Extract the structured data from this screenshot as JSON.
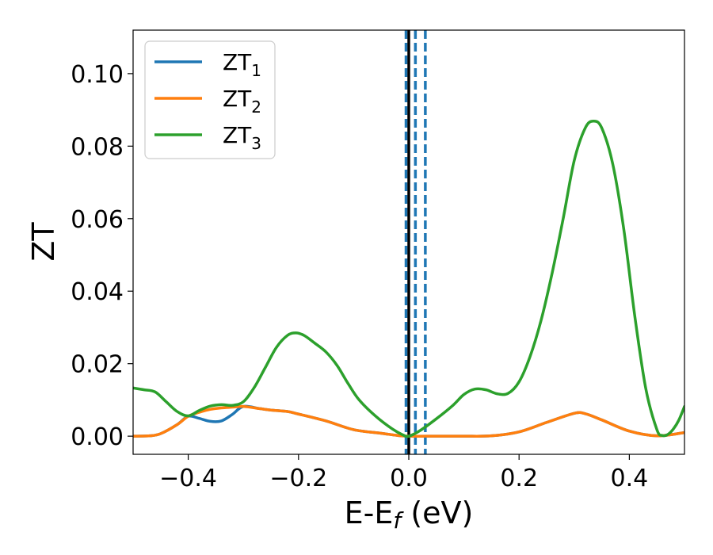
{
  "chart_data": {
    "type": "line",
    "xlabel": "E-E",
    "xlabel_sub": "f",
    "xlabel_unit": " (eV)",
    "ylabel": "ZT",
    "xlim": [
      -0.5,
      0.5
    ],
    "ylim": [
      -0.005,
      0.112
    ],
    "xticks": [
      -0.4,
      -0.2,
      0.0,
      0.2,
      0.4
    ],
    "xtick_labels": [
      "−0.4",
      "−0.2",
      "0.0",
      "0.2",
      "0.4"
    ],
    "yticks": [
      0.0,
      0.02,
      0.04,
      0.06,
      0.08,
      0.1
    ],
    "ytick_labels": [
      "0.00",
      "0.02",
      "0.04",
      "0.06",
      "0.08",
      "0.10"
    ],
    "grid": false,
    "legend": "top-left",
    "series": [
      {
        "name": "ZT",
        "sub": "1",
        "color": "#1f77b4",
        "points": [
          [
            -0.5,
            0.0
          ],
          [
            -0.47,
            0.0001
          ],
          [
            -0.45,
            0.0007
          ],
          [
            -0.42,
            0.0032
          ],
          [
            -0.4,
            0.0055
          ],
          [
            -0.38,
            0.0049
          ],
          [
            -0.36,
            0.0041
          ],
          [
            -0.34,
            0.0042
          ],
          [
            -0.32,
            0.006
          ],
          [
            -0.3,
            0.0082
          ],
          [
            -0.27,
            0.0076
          ],
          [
            -0.25,
            0.0072
          ],
          [
            -0.22,
            0.0068
          ],
          [
            -0.2,
            0.0061
          ],
          [
            -0.15,
            0.0042
          ],
          [
            -0.1,
            0.0018
          ],
          [
            -0.05,
            0.0008
          ],
          [
            -0.02,
            0.0002
          ],
          [
            0.0,
            0.0
          ],
          [
            0.05,
            0.0
          ],
          [
            0.1,
            0.0
          ],
          [
            0.15,
            0.0001
          ],
          [
            0.2,
            0.0012
          ],
          [
            0.25,
            0.0038
          ],
          [
            0.3,
            0.0063
          ],
          [
            0.32,
            0.0062
          ],
          [
            0.35,
            0.0045
          ],
          [
            0.4,
            0.0014
          ],
          [
            0.45,
            0.0001
          ],
          [
            0.5,
            0.001
          ]
        ]
      },
      {
        "name": "ZT",
        "sub": "2",
        "color": "#ff7f0e",
        "points": [
          [
            -0.5,
            0.0
          ],
          [
            -0.47,
            0.0001
          ],
          [
            -0.45,
            0.0007
          ],
          [
            -0.42,
            0.0032
          ],
          [
            -0.4,
            0.0055
          ],
          [
            -0.38,
            0.0066
          ],
          [
            -0.36,
            0.0074
          ],
          [
            -0.34,
            0.0078
          ],
          [
            -0.32,
            0.008
          ],
          [
            -0.3,
            0.0082
          ],
          [
            -0.27,
            0.0076
          ],
          [
            -0.25,
            0.0072
          ],
          [
            -0.22,
            0.0068
          ],
          [
            -0.2,
            0.0061
          ],
          [
            -0.15,
            0.0042
          ],
          [
            -0.1,
            0.0018
          ],
          [
            -0.05,
            0.0008
          ],
          [
            -0.02,
            0.0002
          ],
          [
            0.0,
            0.0
          ],
          [
            0.05,
            0.0
          ],
          [
            0.1,
            0.0
          ],
          [
            0.15,
            0.0001
          ],
          [
            0.2,
            0.0012
          ],
          [
            0.25,
            0.0038
          ],
          [
            0.3,
            0.0063
          ],
          [
            0.32,
            0.0062
          ],
          [
            0.35,
            0.0045
          ],
          [
            0.4,
            0.0014
          ],
          [
            0.45,
            0.0001
          ],
          [
            0.5,
            0.001
          ]
        ]
      },
      {
        "name": "ZT",
        "sub": "3",
        "color": "#2ca02c",
        "points": [
          [
            -0.5,
            0.0133
          ],
          [
            -0.48,
            0.0128
          ],
          [
            -0.46,
            0.0122
          ],
          [
            -0.44,
            0.0095
          ],
          [
            -0.42,
            0.0068
          ],
          [
            -0.4,
            0.0056
          ],
          [
            -0.38,
            0.0071
          ],
          [
            -0.36,
            0.0083
          ],
          [
            -0.34,
            0.0087
          ],
          [
            -0.32,
            0.0085
          ],
          [
            -0.3,
            0.0095
          ],
          [
            -0.28,
            0.0135
          ],
          [
            -0.26,
            0.019
          ],
          [
            -0.24,
            0.0245
          ],
          [
            -0.22,
            0.0278
          ],
          [
            -0.205,
            0.0285
          ],
          [
            -0.19,
            0.0278
          ],
          [
            -0.17,
            0.0256
          ],
          [
            -0.15,
            0.0232
          ],
          [
            -0.13,
            0.0195
          ],
          [
            -0.11,
            0.0145
          ],
          [
            -0.09,
            0.01
          ],
          [
            -0.06,
            0.0055
          ],
          [
            -0.03,
            0.002
          ],
          [
            -0.01,
            0.0003
          ],
          [
            0.0,
            0.0
          ],
          [
            0.02,
            0.0015
          ],
          [
            0.05,
            0.0048
          ],
          [
            0.08,
            0.0085
          ],
          [
            0.1,
            0.0115
          ],
          [
            0.12,
            0.013
          ],
          [
            0.14,
            0.0128
          ],
          [
            0.16,
            0.0117
          ],
          [
            0.18,
            0.0118
          ],
          [
            0.2,
            0.015
          ],
          [
            0.22,
            0.022
          ],
          [
            0.24,
            0.032
          ],
          [
            0.26,
            0.045
          ],
          [
            0.28,
            0.06
          ],
          [
            0.3,
            0.076
          ],
          [
            0.32,
            0.085
          ],
          [
            0.335,
            0.0869
          ],
          [
            0.35,
            0.085
          ],
          [
            0.37,
            0.075
          ],
          [
            0.39,
            0.057
          ],
          [
            0.41,
            0.033
          ],
          [
            0.43,
            0.013
          ],
          [
            0.45,
            0.0018
          ],
          [
            0.46,
            0.0002
          ],
          [
            0.47,
            0.0005
          ],
          [
            0.48,
            0.002
          ],
          [
            0.49,
            0.0045
          ],
          [
            0.5,
            0.0082
          ]
        ]
      }
    ],
    "vlines": [
      {
        "x": -0.005,
        "color": "#1f77b4",
        "style": "dashed"
      },
      {
        "x": 0.012,
        "color": "#1f77b4",
        "style": "dashed"
      },
      {
        "x": 0.03,
        "color": "#1f77b4",
        "style": "dashed"
      },
      {
        "x": 0.0,
        "color": "#000000",
        "style": "solid"
      }
    ]
  }
}
